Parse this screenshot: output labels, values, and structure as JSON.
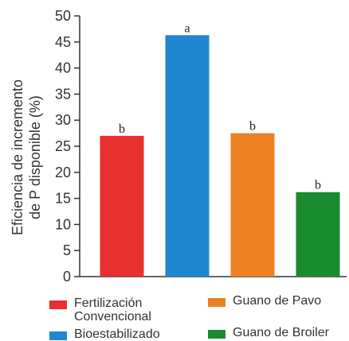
{
  "chart_data": {
    "type": "bar",
    "ylabel": "Eficiencia de incremento\nde P disponible (%)",
    "ylim": [
      0,
      50
    ],
    "yticks": [
      0,
      5,
      10,
      15,
      20,
      25,
      30,
      35,
      40,
      45,
      50
    ],
    "grid": false,
    "legend_position": "bottom",
    "series": [
      {
        "name": "Fertilización\nConvencional",
        "value": 27,
        "label": "b",
        "color": "#e8312f"
      },
      {
        "name": "Bioestabilizado",
        "value": 46.3,
        "label": "a",
        "color": "#1f86d0"
      },
      {
        "name": "Guano de Pavo",
        "value": 27.5,
        "label": "b",
        "color": "#ec8123"
      },
      {
        "name": "Guano de Broiler",
        "value": 16.2,
        "label": "b",
        "color": "#1a8a2e"
      }
    ]
  }
}
